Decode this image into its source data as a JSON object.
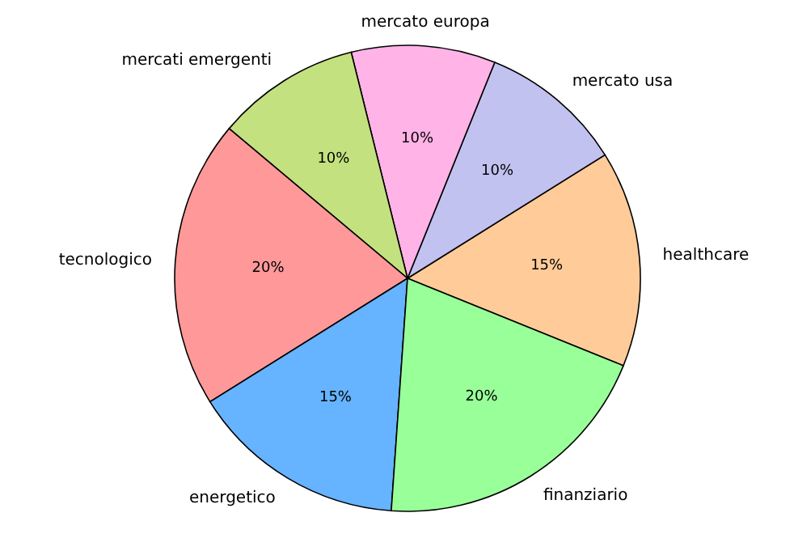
{
  "chart_data": {
    "type": "pie",
    "categories": [
      "healthcare",
      "mercato usa",
      "mercato europa",
      "mercati emergenti",
      "tecnologico",
      "energetico",
      "finanziario"
    ],
    "values": [
      15,
      10,
      10,
      10,
      20,
      15,
      20
    ],
    "value_labels": [
      "15%",
      "10%",
      "10%",
      "10%",
      "20%",
      "15%",
      "20%"
    ],
    "colors": [
      "#ffcc99",
      "#c2c2f0",
      "#ffb3e6",
      "#c4e17f",
      "#ff9999",
      "#66b3ff",
      "#99ff99"
    ],
    "legend": false
  }
}
